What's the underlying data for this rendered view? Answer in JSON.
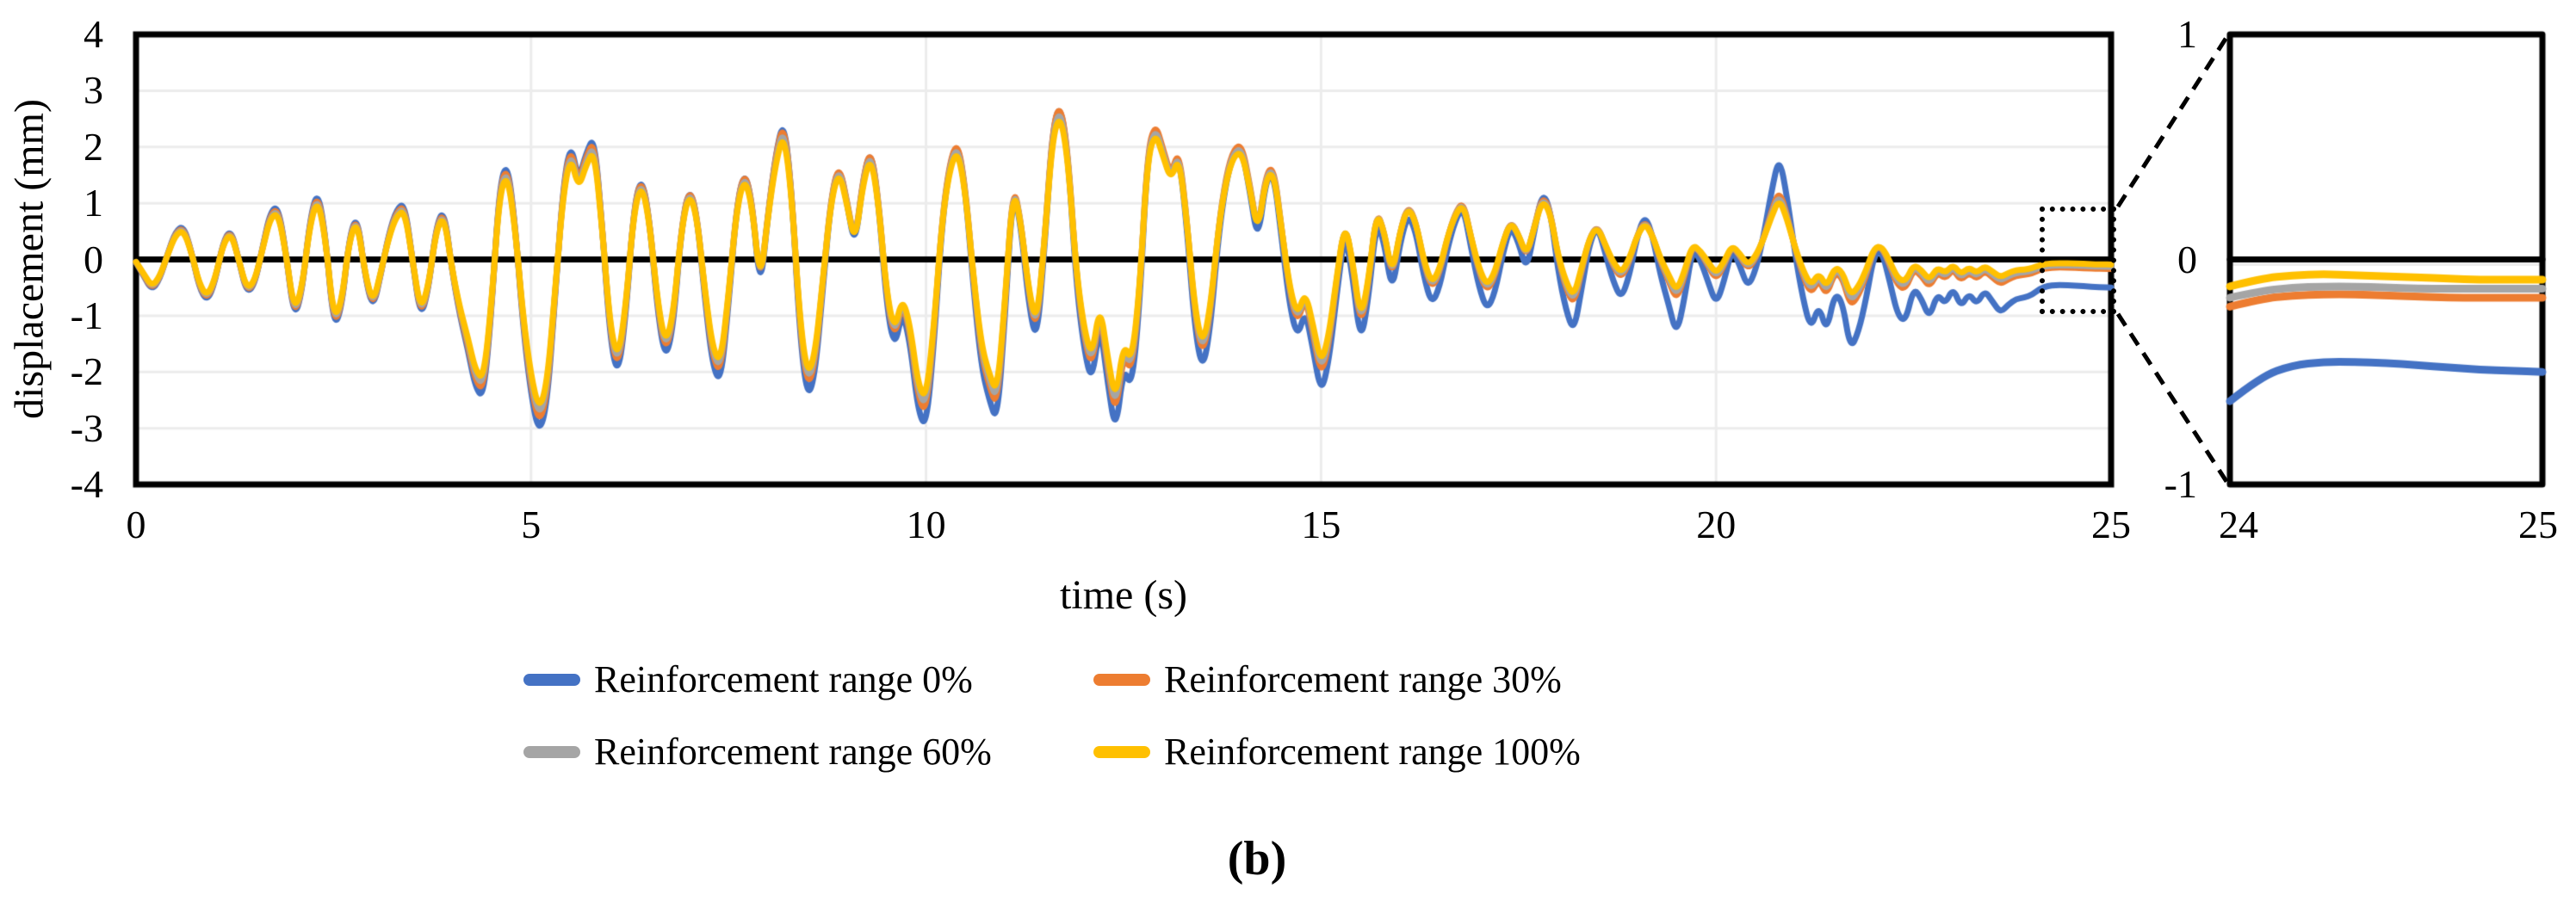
{
  "figure": {
    "caption": "(b)",
    "x_axis_label": "time (s)",
    "y_axis_label": "displacement (mm)"
  },
  "legend": {
    "items": [
      {
        "label": "Reinforcement range 0%",
        "color": "#4472C4"
      },
      {
        "label": "Reinforcement range 30%",
        "color": "#ED7D31"
      },
      {
        "label": "Reinforcement range 60%",
        "color": "#A5A5A5"
      },
      {
        "label": "Reinforcement range 100%",
        "color": "#FFC000"
      }
    ]
  },
  "chart_data": [
    {
      "id": "main",
      "type": "line",
      "title": "",
      "xlabel": "time (s)",
      "ylabel": "displacement (mm)",
      "xlim": [
        0,
        25
      ],
      "ylim": [
        -4,
        4
      ],
      "xticks": [
        0,
        5,
        10,
        15,
        20,
        25
      ],
      "yticks": [
        4,
        3,
        2,
        1,
        0,
        -1,
        -2,
        -3,
        -4
      ],
      "grid": true,
      "gridline_color": "#ECECEC",
      "zero_line_color": "#000000",
      "x_start": 0,
      "x_step": 0.1,
      "base_values": [
        -0.05,
        -0.3,
        -0.55,
        -0.35,
        0.1,
        0.5,
        0.6,
        0.15,
        -0.5,
        -0.75,
        -0.4,
        0.3,
        0.55,
        0,
        -0.6,
        -0.45,
        0.2,
        0.85,
        0.95,
        0.1,
        -1.05,
        -0.6,
        0.7,
        1.25,
        0.4,
        -1.2,
        -0.9,
        0.4,
        0.8,
        -0.3,
        -0.9,
        -0.25,
        0.45,
        0.9,
        1,
        0,
        -1.05,
        -0.55,
        0.6,
        0.9,
        -0.2,
        -1,
        -1.6,
        -2.3,
        -2.45,
        -0.9,
        1.3,
        1.75,
        0.6,
        -1.2,
        -2.4,
        -3.1,
        -2.6,
        -0.8,
        1.2,
        2.1,
        1.4,
        1.9,
        2.2,
        0.6,
        -1.4,
        -2.1,
        -1,
        0.9,
        1.5,
        0.7,
        -0.9,
        -1.8,
        -1.2,
        0.5,
        1.3,
        0.8,
        -0.7,
        -1.9,
        -2.2,
        -0.8,
        0.9,
        1.6,
        1,
        -0.6,
        0.8,
        1.9,
        2.5,
        1.2,
        -1.3,
        -2.5,
        -2,
        -0.4,
        1.1,
        1.7,
        1,
        0.2,
        1.4,
        2,
        1,
        -0.8,
        -1.6,
        -0.9,
        -1.5,
        -2.7,
        -3,
        -1.5,
        0.6,
        1.7,
        2.1,
        1.2,
        -0.5,
        -1.9,
        -2.5,
        -2.9,
        -1,
        1.3,
        0.6,
        -0.8,
        -1.5,
        0.2,
        2.3,
        2.8,
        1.8,
        -0.4,
        -1.6,
        -2.2,
        -1.1,
        -2.2,
        -3.1,
        -1.9,
        -2.3,
        -0.9,
        1.8,
        2.4,
        1.9,
        1.4,
        1.9,
        0.6,
        -1.2,
        -2,
        -1.2,
        0.4,
        1.4,
        1.9,
        1.95,
        1.2,
        0.3,
        1.4,
        1.55,
        0.4,
        -0.8,
        -1.4,
        -0.9,
        -1.6,
        -2.4,
        -1.8,
        -0.6,
        0.5,
        -0.3,
        -1.5,
        -0.7,
        0.7,
        0.3,
        -0.6,
        0.3,
        0.8,
        0.5,
        -0.3,
        -0.8,
        -0.5,
        0.2,
        0.7,
        0.95,
        0.2,
        -0.5,
        -0.9,
        -0.6,
        0.1,
        0.6,
        0.3,
        -0.2,
        0.5,
        1.2,
        0.9,
        -0.2,
        -0.9,
        -1.3,
        -0.5,
        0.3,
        0.6,
        0.1,
        -0.4,
        -0.7,
        -0.3,
        0.4,
        0.8,
        0.4,
        -0.3,
        -0.8,
        -1.35,
        -0.7,
        0.2,
        0,
        -0.4,
        -0.8,
        -0.4,
        0.2,
        -0.1,
        -0.5,
        -0.2,
        0.4,
        1.2,
        1.85,
        1.1,
        0.1,
        -0.7,
        -1.25,
        -0.8,
        -1.3,
        -0.6,
        -0.75,
        -1.6,
        -1.3,
        -0.7,
        0.1,
        0.15,
        -0.4,
        -1,
        -1.1,
        -0.5,
        -0.7,
        -1.05,
        -0.6,
        -0.8,
        -0.5,
        -0.85,
        -0.6,
        -0.8,
        -0.55,
        -0.75,
        -0.95,
        -0.8,
        -0.7,
        -0.68,
        -0.63,
        -0.52,
        -0.47,
        -0.455,
        -0.455,
        -0.46,
        -0.47,
        -0.48,
        -0.49,
        -0.495,
        -0.5
      ],
      "residual_ramp": {
        "t0": 4,
        "t1": 21
      },
      "scale_transition": {
        "t0": 16,
        "t1": 20
      },
      "series": [
        {
          "name": "Reinforcement range 0%",
          "color": "#4472C4",
          "scale_early": 1.0,
          "scale_late": 1.0,
          "residual": -0.5
        },
        {
          "name": "Reinforcement range 30%",
          "color": "#ED7D31",
          "scale_early": 0.95,
          "scale_late": 0.6,
          "residual": -0.17
        },
        {
          "name": "Reinforcement range 60%",
          "color": "#A5A5A5",
          "scale_early": 0.91,
          "scale_late": 0.55,
          "residual": -0.13
        },
        {
          "name": "Reinforcement range 100%",
          "color": "#FFC000",
          "scale_early": 0.87,
          "scale_late": 0.5,
          "residual": -0.09
        }
      ],
      "zoom_box": {
        "x0": 24.1,
        "x1": 25,
        "y0": -0.97,
        "y1": 0.94
      }
    },
    {
      "id": "inset",
      "type": "line",
      "xlim": [
        24,
        25
      ],
      "ylim": [
        -1,
        1
      ],
      "xticks": [
        24,
        25
      ],
      "yticks": [
        1,
        0,
        -1
      ],
      "grid": false,
      "x": [
        24,
        24.1,
        24.2,
        24.3,
        24.4,
        24.5,
        24.6,
        24.7,
        24.8,
        24.9,
        25
      ],
      "series": [
        {
          "name": "Reinforcement range 0%",
          "color": "#4472C4",
          "values": [
            -0.63,
            -0.52,
            -0.47,
            -0.455,
            -0.455,
            -0.46,
            -0.47,
            -0.48,
            -0.49,
            -0.495,
            -0.5
          ]
        },
        {
          "name": "Reinforcement range 30%",
          "color": "#ED7D31",
          "values": [
            -0.21,
            -0.175,
            -0.16,
            -0.155,
            -0.155,
            -0.16,
            -0.165,
            -0.17,
            -0.17,
            -0.17,
            -0.17
          ]
        },
        {
          "name": "Reinforcement range 60%",
          "color": "#A5A5A5",
          "values": [
            -0.17,
            -0.14,
            -0.125,
            -0.12,
            -0.12,
            -0.125,
            -0.13,
            -0.13,
            -0.13,
            -0.13,
            -0.13
          ]
        },
        {
          "name": "Reinforcement range 100%",
          "color": "#FFC000",
          "values": [
            -0.12,
            -0.085,
            -0.07,
            -0.065,
            -0.07,
            -0.075,
            -0.08,
            -0.085,
            -0.09,
            -0.09,
            -0.09
          ]
        }
      ]
    }
  ]
}
